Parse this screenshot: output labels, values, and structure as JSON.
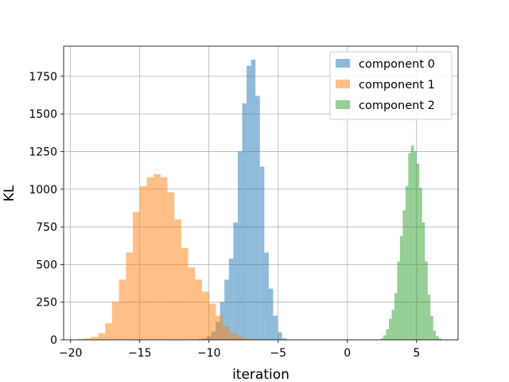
{
  "chart_data": {
    "type": "histogram",
    "title": "",
    "xlabel": "iteration",
    "ylabel": "KL",
    "xlim": [
      -20.5,
      8.0
    ],
    "ylim": [
      0,
      1950
    ],
    "xticks": [
      -20,
      -15,
      -10,
      -5,
      0,
      5
    ],
    "yticks": [
      0,
      250,
      500,
      750,
      1000,
      1250,
      1500,
      1750
    ],
    "grid": true,
    "legend_position": "top-right",
    "series": [
      {
        "name": "component 0",
        "color": "#1f77b4",
        "opacity": 0.5,
        "bin_width": 0.32,
        "bin_start": -10.8,
        "counts": [
          5,
          10,
          25,
          55,
          120,
          250,
          400,
          540,
          780,
          1250,
          1570,
          1820,
          1860,
          1620,
          1150,
          580,
          340,
          160,
          50,
          10
        ]
      },
      {
        "name": "component 1",
        "color": "#ff7f0e",
        "opacity": 0.5,
        "bin_width": 0.5,
        "bin_start": -19.5,
        "counts": [
          5,
          10,
          20,
          45,
          110,
          250,
          400,
          580,
          850,
          1020,
          1080,
          1100,
          1080,
          980,
          800,
          610,
          480,
          400,
          320,
          240,
          160,
          90,
          45,
          20,
          8,
          5
        ]
      },
      {
        "name": "component 2",
        "color": "#2ca02c",
        "opacity": 0.5,
        "bin_width": 0.2,
        "bin_start": 2.4,
        "counts": [
          10,
          30,
          70,
          140,
          200,
          310,
          520,
          690,
          860,
          1020,
          1240,
          1290,
          1250,
          1170,
          1010,
          780,
          520,
          300,
          160,
          60,
          25,
          8
        ]
      }
    ]
  }
}
